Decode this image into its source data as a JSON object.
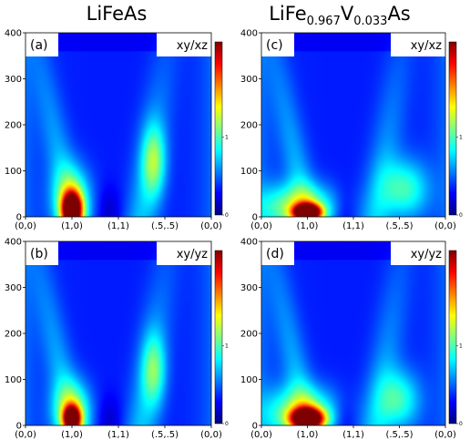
{
  "titles": {
    "left": "LiFeAs",
    "right": {
      "base1": "LiFe",
      "sub1": "0.967",
      "base2": "V",
      "sub2": "0.033",
      "base3": "As"
    }
  },
  "colormap": [
    "#00007f",
    "#0000ff",
    "#007fff",
    "#00ffff",
    "#7fff7f",
    "#ffff00",
    "#ff7f00",
    "#ff0000",
    "#7f0000"
  ],
  "chart_data": [
    {
      "type": "heatmap",
      "panel": "(a)",
      "orbital": "xy/xz",
      "x_ticks": [
        "(0,0)",
        "(1,0)",
        "(1,1)",
        "(.5,.5)",
        "(0,0)"
      ],
      "y_ticks": [
        "0",
        "100",
        "200",
        "300",
        "400"
      ],
      "ylim": [
        0,
        400
      ],
      "colorbar_ticks": [
        "0",
        "1"
      ],
      "features": [
        {
          "x": 0.25,
          "y": 15,
          "wx": 0.035,
          "wy": 25,
          "intensity": 1.9
        },
        {
          "x": 0.25,
          "y": 35,
          "wx": 0.07,
          "wy": 50,
          "intensity": 0.7
        },
        {
          "x": 0.69,
          "y": 120,
          "wx": 0.045,
          "wy": 55,
          "intensity": 0.6
        }
      ]
    },
    {
      "type": "heatmap",
      "panel": "(b)",
      "orbital": "xy/yz",
      "x_ticks": [
        "(0,0)",
        "(1,0)",
        "(1,1)",
        "(.5,.5)",
        "(0,0)"
      ],
      "y_ticks": [
        "0",
        "100",
        "200",
        "300",
        "400"
      ],
      "ylim": [
        0,
        400
      ],
      "colorbar_ticks": [
        "0",
        "1"
      ],
      "features": [
        {
          "x": 0.25,
          "y": 15,
          "wx": 0.03,
          "wy": 18,
          "intensity": 1.8
        },
        {
          "x": 0.25,
          "y": 30,
          "wx": 0.07,
          "wy": 45,
          "intensity": 0.75
        },
        {
          "x": 0.69,
          "y": 120,
          "wx": 0.045,
          "wy": 55,
          "intensity": 0.55
        }
      ]
    },
    {
      "type": "heatmap",
      "panel": "(c)",
      "orbital": "xy/xz",
      "x_ticks": [
        "(0,0)",
        "(1,0)",
        "(1,1)",
        "(.5,.5)",
        "(0,0)"
      ],
      "y_ticks": [
        "0",
        "100",
        "200",
        "300",
        "400"
      ],
      "ylim": [
        0,
        400
      ],
      "colorbar_ticks": [
        "0",
        "1"
      ],
      "features": [
        {
          "x": 0.25,
          "y": 10,
          "wx": 0.05,
          "wy": 12,
          "intensity": 2.0
        },
        {
          "x": 0.2,
          "y": 20,
          "wx": 0.15,
          "wy": 35,
          "intensity": 0.75
        },
        {
          "x": 0.78,
          "y": 60,
          "wx": 0.09,
          "wy": 45,
          "intensity": 0.55
        }
      ]
    },
    {
      "type": "heatmap",
      "panel": "(d)",
      "orbital": "xy/yz",
      "x_ticks": [
        "(0,0)",
        "(1,0)",
        "(1,1)",
        "(.5,.5)",
        "(0,0)"
      ],
      "y_ticks": [
        "0",
        "100",
        "200",
        "300",
        "400"
      ],
      "ylim": [
        0,
        400
      ],
      "colorbar_ticks": [
        "0",
        "1"
      ],
      "features": [
        {
          "x": 0.25,
          "y": 15,
          "wx": 0.06,
          "wy": 15,
          "intensity": 2.0
        },
        {
          "x": 0.22,
          "y": 25,
          "wx": 0.14,
          "wy": 40,
          "intensity": 0.8
        },
        {
          "x": 0.75,
          "y": 55,
          "wx": 0.08,
          "wy": 45,
          "intensity": 0.55
        }
      ]
    }
  ]
}
